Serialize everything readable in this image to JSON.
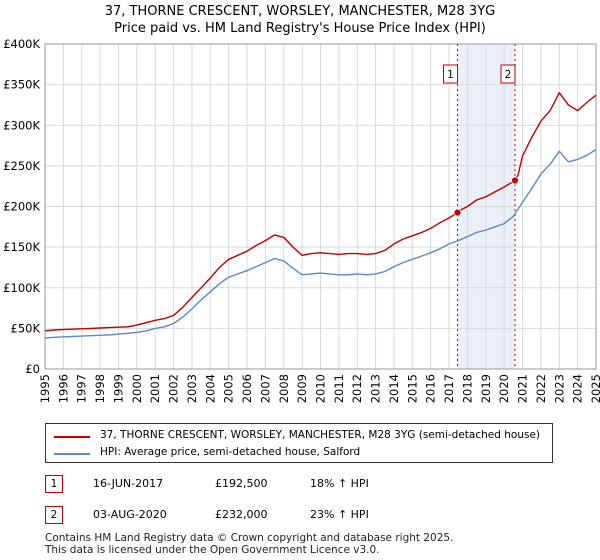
{
  "title_line1": "37, THORNE CRESCENT, WORSLEY, MANCHESTER, M28 3YG",
  "title_line2": "Price paid vs. HM Land Registry's House Price Index (HPI)",
  "colors": {
    "property": "#c00000",
    "hpi": "#5b8ac6",
    "highlight": "#dde6f4",
    "marker": "#c00000"
  },
  "chart_data": {
    "type": "line",
    "title": "Price paid vs. HM Land Registry's House Price Index (HPI)",
    "xlabel": "",
    "ylabel": "",
    "xlim": [
      1995,
      2025
    ],
    "ylim": [
      0,
      400000
    ],
    "x_ticks": [
      1995,
      1996,
      1997,
      1998,
      1999,
      2000,
      2001,
      2002,
      2003,
      2004,
      2005,
      2006,
      2007,
      2008,
      2009,
      2010,
      2011,
      2012,
      2013,
      2014,
      2015,
      2016,
      2017,
      2018,
      2019,
      2020,
      2021,
      2022,
      2023,
      2024,
      2025
    ],
    "y_ticks": [
      0,
      50000,
      100000,
      150000,
      200000,
      250000,
      300000,
      350000,
      400000
    ],
    "y_tick_labels": [
      "£0",
      "£50K",
      "£100K",
      "£150K",
      "£200K",
      "£250K",
      "£300K",
      "£350K",
      "£400K"
    ],
    "grid": true,
    "series": [
      {
        "name": "37, THORNE CRESCENT, WORSLEY, MANCHESTER, M28 3YG (semi-detached house)",
        "x": [
          1995,
          1995.5,
          1996,
          1996.5,
          1997,
          1997.5,
          1998,
          1998.5,
          1999,
          1999.5,
          2000,
          2000.5,
          2001,
          2001.5,
          2002,
          2002.5,
          2003,
          2003.5,
          2004,
          2004.5,
          2005,
          2005.5,
          2006,
          2006.5,
          2007,
          2007.5,
          2008,
          2008.5,
          2009,
          2009.5,
          2010,
          2010.5,
          2011,
          2011.5,
          2012,
          2012.5,
          2013,
          2013.5,
          2014,
          2014.5,
          2015,
          2015.5,
          2016,
          2016.5,
          2017,
          2017.46,
          2017.5,
          2018,
          2018.5,
          2019,
          2019.5,
          2020,
          2020.59,
          2020.75,
          2021,
          2021.5,
          2022,
          2022.5,
          2023,
          2023.5,
          2024,
          2024.5,
          2025
        ],
        "values": [
          47000,
          48000,
          48500,
          49000,
          49500,
          50000,
          50500,
          51000,
          51500,
          52000,
          54000,
          57000,
          60000,
          62000,
          66000,
          76000,
          88000,
          100000,
          112000,
          125000,
          135000,
          140000,
          145000,
          152000,
          158000,
          165000,
          162000,
          150000,
          140000,
          142000,
          143000,
          142000,
          141000,
          142000,
          142000,
          141000,
          142000,
          146000,
          154000,
          160000,
          164000,
          168000,
          173000,
          180000,
          186000,
          192500,
          194000,
          200000,
          208000,
          212000,
          218000,
          224000,
          232000,
          238000,
          262000,
          285000,
          305000,
          318000,
          340000,
          325000,
          318000,
          328000,
          337000
        ]
      },
      {
        "name": "HPI: Average price, semi-detached house, Salford",
        "x": [
          1995,
          1995.5,
          1996,
          1996.5,
          1997,
          1997.5,
          1998,
          1998.5,
          1999,
          1999.5,
          2000,
          2000.5,
          2001,
          2001.5,
          2002,
          2002.5,
          2003,
          2003.5,
          2004,
          2004.5,
          2005,
          2005.5,
          2006,
          2006.5,
          2007,
          2007.5,
          2008,
          2008.5,
          2009,
          2009.5,
          2010,
          2010.5,
          2011,
          2011.5,
          2012,
          2012.5,
          2013,
          2013.5,
          2014,
          2014.5,
          2015,
          2015.5,
          2016,
          2016.5,
          2017,
          2017.5,
          2018,
          2018.5,
          2019,
          2019.5,
          2020,
          2020.5,
          2021,
          2021.5,
          2022,
          2022.5,
          2023,
          2023.5,
          2024,
          2024.5,
          2025
        ],
        "values": [
          38000,
          39000,
          39500,
          40000,
          40500,
          41000,
          41500,
          42000,
          43000,
          44000,
          45000,
          47000,
          50000,
          52000,
          56000,
          64000,
          74000,
          85000,
          95000,
          105000,
          113000,
          117000,
          121000,
          126000,
          131000,
          136000,
          133000,
          124000,
          116000,
          117000,
          118000,
          117000,
          116000,
          116000,
          117000,
          116000,
          117000,
          120000,
          126000,
          131000,
          135000,
          139000,
          143000,
          148000,
          154000,
          158000,
          163000,
          168000,
          171000,
          175000,
          179000,
          188000,
          205000,
          222000,
          240000,
          252000,
          268000,
          255000,
          258000,
          263000,
          270000
        ]
      }
    ],
    "transactions": [
      {
        "label": "1",
        "x": 2017.46,
        "price": 192500
      },
      {
        "label": "2",
        "x": 2020.59,
        "price": 232000
      }
    ]
  },
  "legend": {
    "property_label": "37, THORNE CRESCENT, WORSLEY, MANCHESTER, M28 3YG (semi-detached house)",
    "hpi_label": "HPI: Average price, semi-detached house, Salford"
  },
  "sales": [
    {
      "num": "1",
      "date": "16-JUN-2017",
      "price": "£192,500",
      "hpi": "18% ↑ HPI"
    },
    {
      "num": "2",
      "date": "03-AUG-2020",
      "price": "£232,000",
      "hpi": "23% ↑ HPI"
    }
  ],
  "footer": {
    "line1": "Contains HM Land Registry data © Crown copyright and database right 2025.",
    "line2": "This data is licensed under the Open Government Licence v3.0."
  }
}
